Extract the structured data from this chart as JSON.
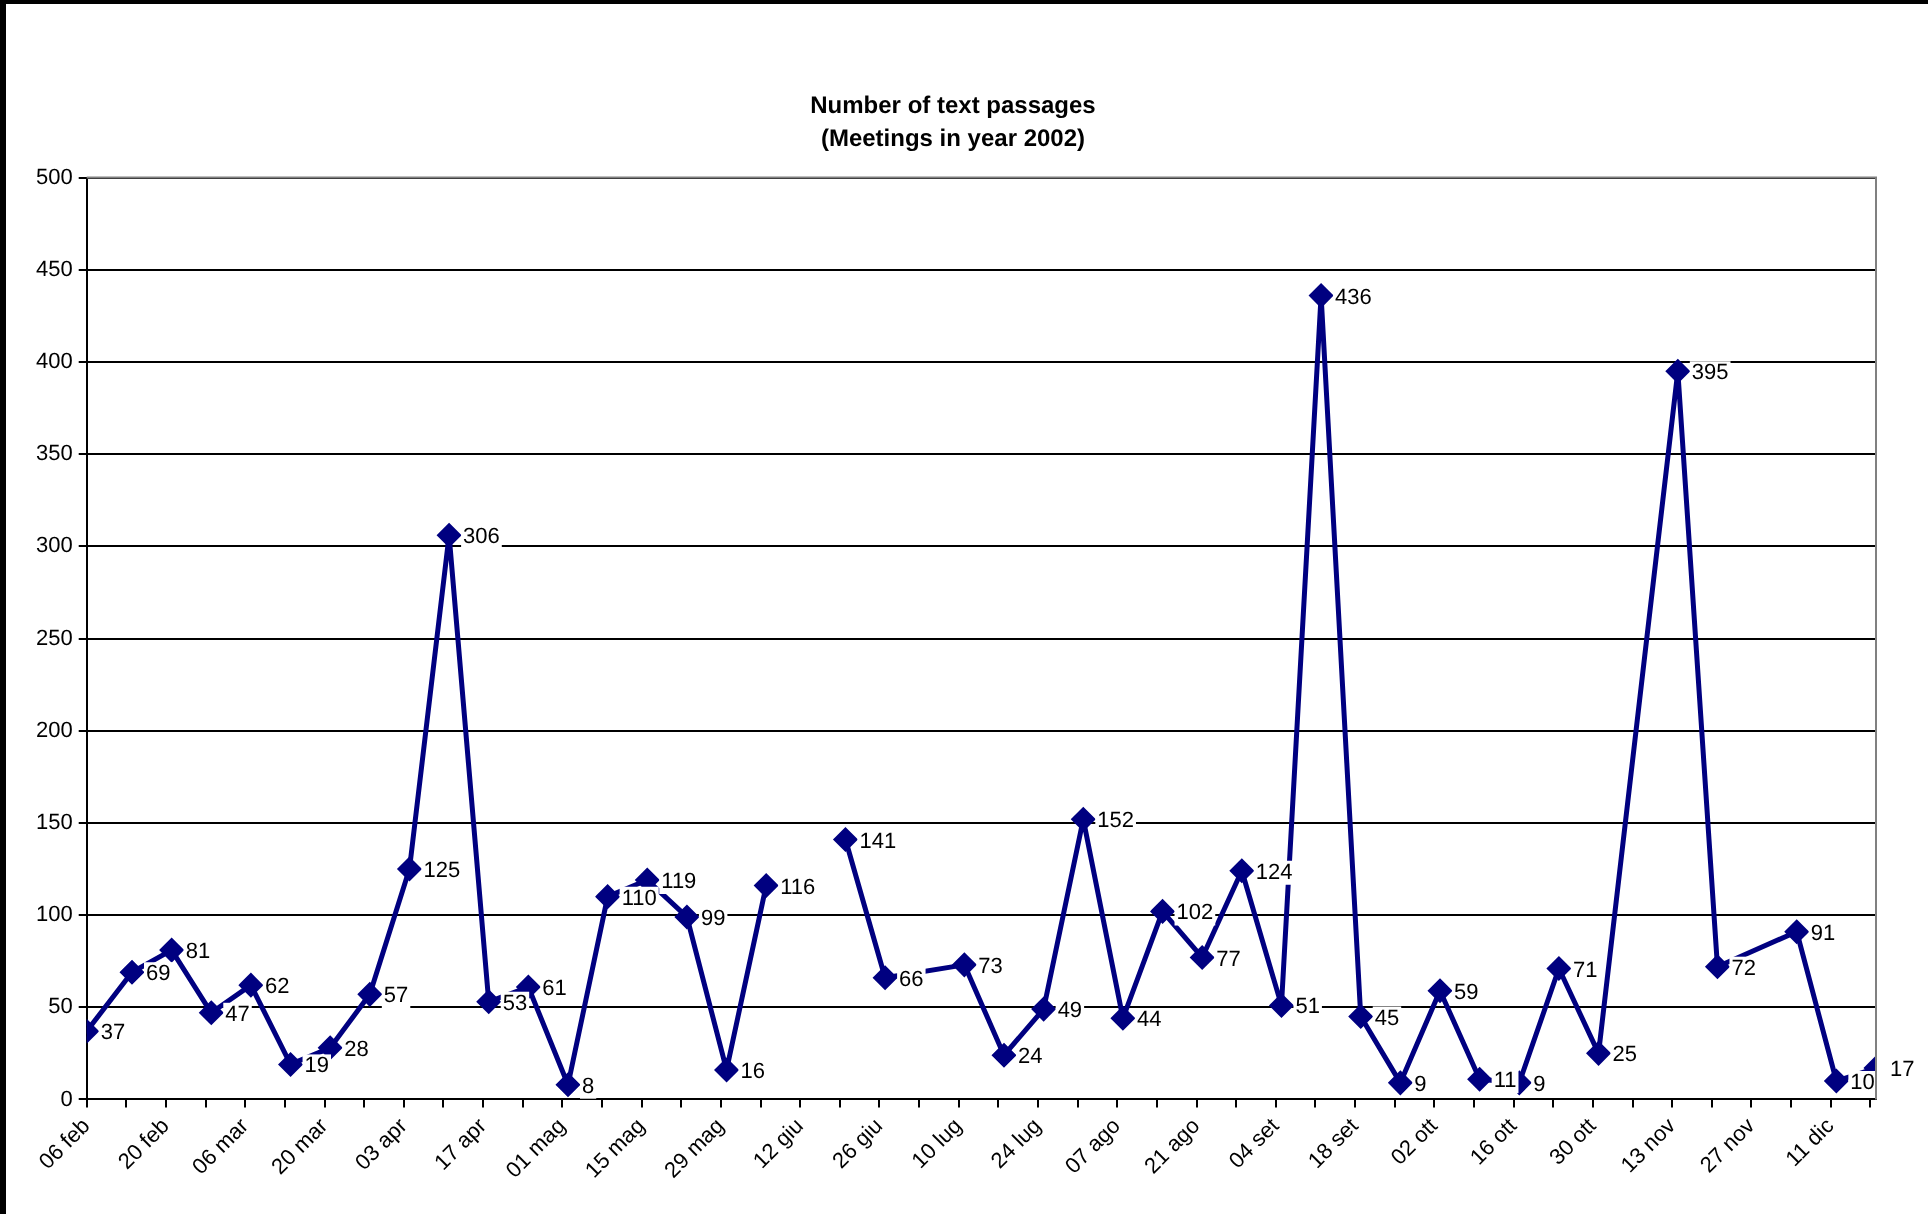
{
  "chart_data": {
    "type": "line",
    "title": "Number of text passages",
    "subtitle": "(Meetings in year 2002)",
    "x": [
      "2002-02-06",
      "2002-02-14",
      "2002-02-21",
      "2002-02-28",
      "2002-03-07",
      "2002-03-14",
      "2002-03-21",
      "2002-03-28",
      "2002-04-04",
      "2002-04-11",
      "2002-04-18",
      "2002-04-25",
      "2002-05-02",
      "2002-05-09",
      "2002-05-16",
      "2002-05-23",
      "2002-05-30",
      "2002-06-06",
      "2002-06-13",
      "2002-06-20",
      "2002-06-27",
      "2002-07-11",
      "2002-07-18",
      "2002-07-25",
      "2002-08-01",
      "2002-08-08",
      "2002-08-15",
      "2002-08-22",
      "2002-08-29",
      "2002-09-05",
      "2002-09-12",
      "2002-09-19",
      "2002-09-26",
      "2002-10-03",
      "2002-10-10",
      "2002-10-17",
      "2002-10-24",
      "2002-10-31",
      "2002-11-14",
      "2002-11-21",
      "2002-12-05",
      "2002-12-12",
      "2002-12-19"
    ],
    "series": [
      {
        "color": "#000080",
        "values": [
          37,
          69,
          81,
          47,
          62,
          19,
          28,
          57,
          125,
          306,
          53,
          61,
          8,
          110,
          119,
          99,
          16,
          116,
          null,
          141,
          66,
          73,
          24,
          49,
          152,
          44,
          102,
          77,
          124,
          51,
          436,
          45,
          9,
          59,
          11,
          9,
          71,
          25,
          395,
          72,
          91,
          10,
          17
        ],
        "value_labels": [
          "37",
          "69",
          "81",
          "47",
          "62",
          "19",
          "28",
          "57",
          "125",
          "306",
          "53",
          "61",
          "8",
          "110",
          "119",
          "99",
          "16",
          "116",
          null,
          "141",
          "66",
          "73",
          "24",
          "49",
          "152",
          "44",
          "102",
          "77",
          "124",
          "51",
          "436",
          "45",
          "9",
          "59",
          "11",
          "9",
          "71",
          "25",
          "395",
          "72",
          "91",
          "10",
          "17"
        ]
      }
    ],
    "xlim": [
      "2002-02-06",
      "2002-12-19"
    ],
    "xticks": [
      {
        "value": "2002-02-06",
        "label": "06 feb"
      },
      {
        "value": "2002-02-13",
        "label": null
      },
      {
        "value": "2002-02-20",
        "label": "20 feb"
      },
      {
        "value": "2002-02-27",
        "label": null
      },
      {
        "value": "2002-03-06",
        "label": "06 mar"
      },
      {
        "value": "2002-03-13",
        "label": null
      },
      {
        "value": "2002-03-20",
        "label": "20 mar"
      },
      {
        "value": "2002-03-27",
        "label": null
      },
      {
        "value": "2002-04-03",
        "label": "03 apr"
      },
      {
        "value": "2002-04-10",
        "label": null
      },
      {
        "value": "2002-04-17",
        "label": "17 apr"
      },
      {
        "value": "2002-04-24",
        "label": null
      },
      {
        "value": "2002-05-01",
        "label": "01 mag"
      },
      {
        "value": "2002-05-08",
        "label": null
      },
      {
        "value": "2002-05-15",
        "label": "15 mag"
      },
      {
        "value": "2002-05-22",
        "label": null
      },
      {
        "value": "2002-05-29",
        "label": "29 mag"
      },
      {
        "value": "2002-06-05",
        "label": null
      },
      {
        "value": "2002-06-12",
        "label": "12 giu"
      },
      {
        "value": "2002-06-19",
        "label": null
      },
      {
        "value": "2002-06-26",
        "label": "26 giu"
      },
      {
        "value": "2002-07-03",
        "label": null
      },
      {
        "value": "2002-07-10",
        "label": "10 lug"
      },
      {
        "value": "2002-07-17",
        "label": null
      },
      {
        "value": "2002-07-24",
        "label": "24 lug"
      },
      {
        "value": "2002-07-31",
        "label": null
      },
      {
        "value": "2002-08-07",
        "label": "07 ago"
      },
      {
        "value": "2002-08-14",
        "label": null
      },
      {
        "value": "2002-08-21",
        "label": "21 ago"
      },
      {
        "value": "2002-08-28",
        "label": null
      },
      {
        "value": "2002-09-04",
        "label": "04 set"
      },
      {
        "value": "2002-09-11",
        "label": null
      },
      {
        "value": "2002-09-18",
        "label": "18 set"
      },
      {
        "value": "2002-09-25",
        "label": null
      },
      {
        "value": "2002-10-02",
        "label": "02 ott"
      },
      {
        "value": "2002-10-09",
        "label": null
      },
      {
        "value": "2002-10-16",
        "label": "16 ott"
      },
      {
        "value": "2002-10-23",
        "label": null
      },
      {
        "value": "2002-10-30",
        "label": "30 ott"
      },
      {
        "value": "2002-11-06",
        "label": null
      },
      {
        "value": "2002-11-13",
        "label": "13 nov"
      },
      {
        "value": "2002-11-20",
        "label": null
      },
      {
        "value": "2002-11-27",
        "label": "27 nov"
      },
      {
        "value": "2002-12-04",
        "label": null
      },
      {
        "value": "2002-12-11",
        "label": "11 dic"
      },
      {
        "value": "2002-12-18",
        "label": null
      }
    ],
    "ylim": [
      0,
      500
    ],
    "yticks": [
      0,
      50,
      100,
      150,
      200,
      250,
      300,
      350,
      400,
      450,
      500
    ],
    "grid": "y",
    "legend": false,
    "marker": "diamond",
    "line_style": "solid"
  }
}
